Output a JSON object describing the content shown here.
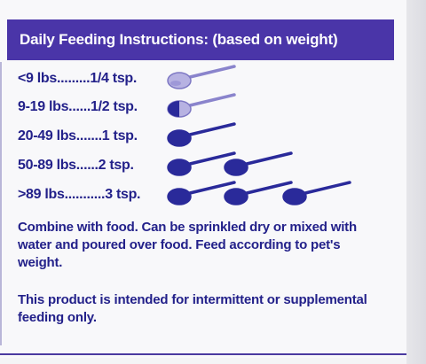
{
  "header": {
    "title": "Daily Feeding Instructions: (based on weight)"
  },
  "dosages": [
    {
      "label": "<9 lbs.........1/4 tsp.",
      "spoons": [
        {
          "fill": "quarter"
        }
      ]
    },
    {
      "label": "9-19 lbs......1/2 tsp.",
      "spoons": [
        {
          "fill": "half"
        }
      ]
    },
    {
      "label": "20-49 lbs.......1 tsp.",
      "spoons": [
        {
          "fill": "full"
        }
      ]
    },
    {
      "label": "50-89 lbs......2 tsp.",
      "spoons": [
        {
          "fill": "full"
        },
        {
          "fill": "full"
        }
      ]
    },
    {
      "label": ">89 lbs...........3 tsp.",
      "spoons": [
        {
          "fill": "full"
        },
        {
          "fill": "full"
        },
        {
          "fill": "full"
        }
      ]
    }
  ],
  "instructions": {
    "usage": "Combine with food. Can be sprinkled dry or mixed with water and poured over food. Feed according to pet's weight.",
    "disclaimer": "This product is intended for intermittent or supplemental feeding only."
  },
  "colors": {
    "brand_purple": "#4a35a8",
    "text_navy": "#23218a",
    "spoon_full": "#2a2a9a",
    "spoon_light": "#b7b2e2"
  }
}
